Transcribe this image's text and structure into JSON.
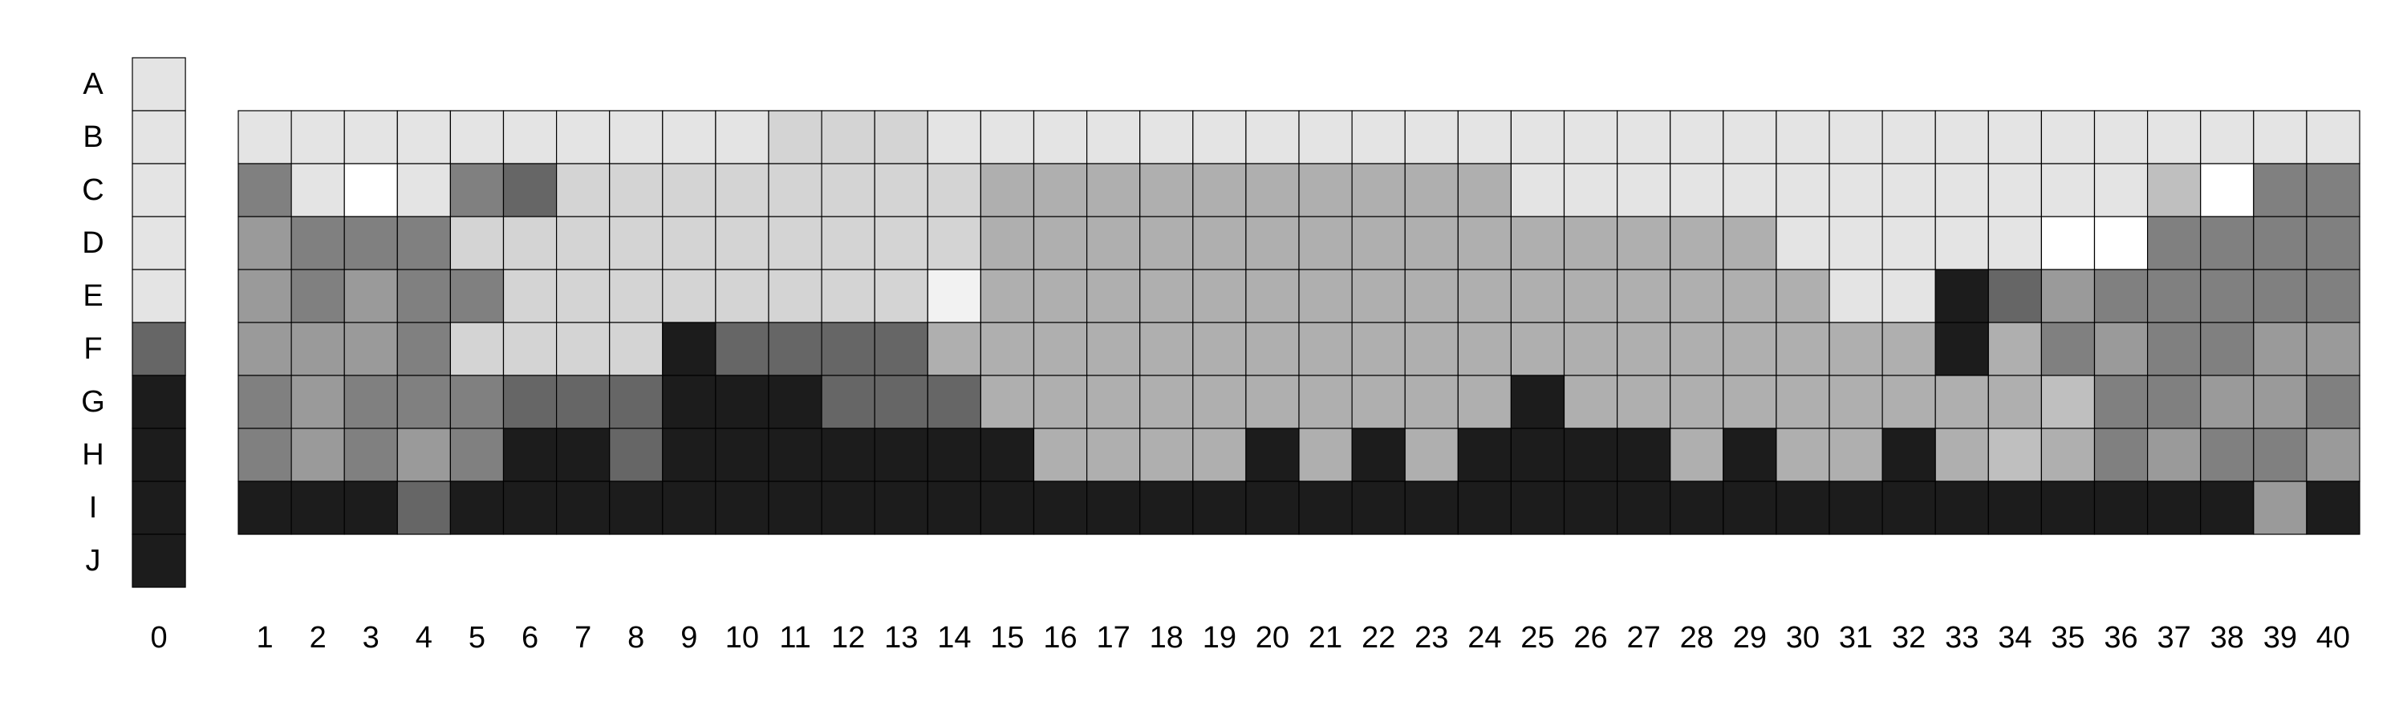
{
  "chart_data": {
    "type": "heatmap",
    "title": "",
    "xlabel": "",
    "ylabel": "",
    "row_labels": [
      "A",
      "B",
      "C",
      "D",
      "E",
      "F",
      "G",
      "H",
      "I",
      "J"
    ],
    "col_labels": [
      "0",
      "1",
      "2",
      "3",
      "4",
      "5",
      "6",
      "7",
      "8",
      "9",
      "10",
      "11",
      "12",
      "13",
      "14",
      "15",
      "16",
      "17",
      "18",
      "19",
      "20",
      "21",
      "22",
      "23",
      "24",
      "25",
      "26",
      "27",
      "28",
      "29",
      "30",
      "31",
      "32",
      "33",
      "34",
      "35",
      "36",
      "37",
      "38",
      "39",
      "40"
    ],
    "palette": {
      "0": "#ffffff",
      "1": "#f2f2f2",
      "2": "#e4e4e4",
      "3": "#d4d4d4",
      "4": "#bfbfbf",
      "5": "#afafaf",
      "6": "#a5a5a5",
      "7": "#9a9a9a",
      "8": "#808080",
      "9": "#666666",
      "10": "#1c1c1c"
    },
    "first_column": [
      2,
      2,
      2,
      2,
      2,
      9,
      10,
      10,
      10,
      10
    ],
    "grid_rows": [
      "B",
      "C",
      "D",
      "E",
      "F",
      "G",
      "H",
      "I"
    ],
    "grid": [
      [
        2,
        2,
        2,
        2,
        2,
        2,
        2,
        2,
        2,
        2,
        3,
        3,
        3,
        2,
        2,
        2,
        2,
        2,
        2,
        2,
        2,
        2,
        2,
        2,
        2,
        2,
        2,
        2,
        2,
        2,
        2,
        2,
        2,
        2,
        2,
        2,
        2,
        2,
        2,
        2
      ],
      [
        8,
        2,
        0,
        2,
        8,
        9,
        3,
        3,
        3,
        3,
        3,
        3,
        3,
        3,
        5,
        5,
        5,
        5,
        5,
        5,
        5,
        5,
        5,
        5,
        2,
        2,
        2,
        2,
        2,
        2,
        2,
        2,
        2,
        2,
        2,
        2,
        4,
        0,
        8,
        8
      ],
      [
        7,
        8,
        8,
        8,
        3,
        3,
        3,
        3,
        3,
        3,
        3,
        3,
        3,
        3,
        5,
        5,
        5,
        5,
        5,
        5,
        5,
        5,
        5,
        5,
        5,
        5,
        5,
        5,
        5,
        2,
        2,
        2,
        2,
        2,
        0,
        0,
        8,
        8,
        8,
        8
      ],
      [
        7,
        8,
        7,
        8,
        8,
        3,
        3,
        3,
        3,
        3,
        3,
        3,
        3,
        1,
        5,
        5,
        5,
        5,
        5,
        5,
        5,
        5,
        5,
        5,
        5,
        5,
        5,
        5,
        5,
        5,
        2,
        2,
        10,
        9,
        7,
        8,
        8,
        8,
        8,
        8
      ],
      [
        7,
        7,
        7,
        8,
        3,
        3,
        3,
        3,
        10,
        9,
        9,
        9,
        9,
        5,
        5,
        5,
        5,
        5,
        5,
        5,
        5,
        5,
        5,
        5,
        5,
        5,
        5,
        5,
        5,
        5,
        5,
        5,
        10,
        5,
        8,
        7,
        8,
        8,
        7,
        7
      ],
      [
        8,
        7,
        8,
        8,
        8,
        9,
        9,
        9,
        10,
        10,
        10,
        9,
        9,
        9,
        5,
        5,
        5,
        5,
        5,
        5,
        5,
        5,
        5,
        5,
        10,
        5,
        5,
        5,
        5,
        5,
        5,
        5,
        5,
        5,
        4,
        8,
        8,
        7,
        7,
        8
      ],
      [
        8,
        7,
        8,
        7,
        8,
        10,
        10,
        9,
        10,
        10,
        10,
        10,
        10,
        10,
        10,
        5,
        5,
        5,
        5,
        10,
        5,
        10,
        5,
        10,
        10,
        10,
        10,
        5,
        10,
        5,
        5,
        10,
        5,
        4,
        5,
        8,
        7,
        8,
        8,
        7
      ],
      [
        10,
        10,
        10,
        9,
        10,
        10,
        10,
        10,
        10,
        10,
        10,
        10,
        10,
        10,
        10,
        10,
        10,
        10,
        10,
        10,
        10,
        10,
        10,
        10,
        10,
        10,
        10,
        10,
        10,
        10,
        10,
        10,
        10,
        10,
        10,
        10,
        10,
        10,
        7,
        10
      ]
    ]
  }
}
